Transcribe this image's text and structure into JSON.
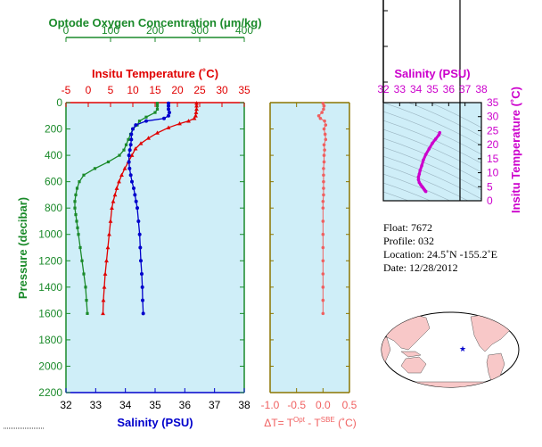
{
  "colors": {
    "oxygen": "#1a8a2a",
    "temperature": "#e00000",
    "salinity": "#0000cc",
    "delta_t": "#f06060",
    "ts_salinity": "#cc00cc",
    "panel_bg": "#cfeef8",
    "pressure_axis": "#1a8a2a",
    "delta_axis": "#8b7500"
  },
  "chart_data": [
    {
      "type": "line",
      "panel": "profiles",
      "ylabel": "Pressure (decibar)",
      "ylim": [
        2200,
        0
      ],
      "yticks": [
        "0",
        "200",
        "400",
        "600",
        "800",
        "1000",
        "1200",
        "1400",
        "1600",
        "1800",
        "2000",
        "2200"
      ],
      "axes": {
        "oxygen": {
          "label": "Optode Oxygen Concentration (μm/kg)",
          "lim": [
            0,
            400
          ],
          "ticks": [
            "0",
            "100",
            "200",
            "300",
            "400"
          ]
        },
        "temperature": {
          "label": "Insitu Temperature (˚C)",
          "lim": [
            -5,
            35
          ],
          "ticks": [
            "-5",
            "0",
            "5",
            "10",
            "15",
            "20",
            "25",
            "30",
            "35"
          ]
        },
        "salinity": {
          "label": "Salinity (PSU)",
          "lim": [
            32,
            38
          ],
          "ticks": [
            "32",
            "33",
            "34",
            "35",
            "36",
            "37",
            "38"
          ]
        }
      },
      "series": [
        {
          "key": "oxygen",
          "marker": "square",
          "points": [
            [
              205,
              5
            ],
            [
              205,
              25
            ],
            [
              205,
              50
            ],
            [
              200,
              75
            ],
            [
              180,
              110
            ],
            [
              165,
              140
            ],
            [
              160,
              170
            ],
            [
              150,
              200
            ],
            [
              145,
              240
            ],
            [
              140,
              280
            ],
            [
              135,
              320
            ],
            [
              130,
              360
            ],
            [
              120,
              400
            ],
            [
              95,
              450
            ],
            [
              65,
              500
            ],
            [
              40,
              550
            ],
            [
              30,
              600
            ],
            [
              25,
              650
            ],
            [
              22,
              700
            ],
            [
              20,
              750
            ],
            [
              20,
              800
            ],
            [
              22,
              850
            ],
            [
              24,
              900
            ],
            [
              26,
              950
            ],
            [
              28,
              1000
            ],
            [
              32,
              1100
            ],
            [
              36,
              1200
            ],
            [
              40,
              1300
            ],
            [
              44,
              1400
            ],
            [
              46,
              1500
            ],
            [
              48,
              1600
            ]
          ]
        },
        {
          "key": "temperature",
          "marker": "triangle",
          "points": [
            [
              24.3,
              5
            ],
            [
              24.3,
              25
            ],
            [
              24.3,
              50
            ],
            [
              24.2,
              75
            ],
            [
              24.1,
              100
            ],
            [
              23.8,
              120
            ],
            [
              22.5,
              140
            ],
            [
              20.5,
              160
            ],
            [
              18,
              190
            ],
            [
              15.5,
              230
            ],
            [
              13.5,
              270
            ],
            [
              11.8,
              310
            ],
            [
              10.6,
              350
            ],
            [
              9.8,
              400
            ],
            [
              9,
              450
            ],
            [
              8.2,
              500
            ],
            [
              7.5,
              550
            ],
            [
              6.9,
              600
            ],
            [
              6.4,
              650
            ],
            [
              6,
              700
            ],
            [
              5.6,
              750
            ],
            [
              5.3,
              800
            ],
            [
              5,
              900
            ],
            [
              4.7,
              1000
            ],
            [
              4.4,
              1100
            ],
            [
              4.1,
              1200
            ],
            [
              3.8,
              1300
            ],
            [
              3.6,
              1400
            ],
            [
              3.4,
              1500
            ],
            [
              3.3,
              1600
            ]
          ]
        },
        {
          "key": "salinity",
          "marker": "circle",
          "points": [
            [
              35.45,
              5
            ],
            [
              35.45,
              25
            ],
            [
              35.45,
              50
            ],
            [
              35.48,
              75
            ],
            [
              35.45,
              100
            ],
            [
              35.3,
              120
            ],
            [
              34.7,
              140
            ],
            [
              34.35,
              170
            ],
            [
              34.25,
              200
            ],
            [
              34.2,
              240
            ],
            [
              34.2,
              280
            ],
            [
              34.18,
              320
            ],
            [
              34.15,
              360
            ],
            [
              34.12,
              400
            ],
            [
              34.12,
              450
            ],
            [
              34.14,
              500
            ],
            [
              34.18,
              550
            ],
            [
              34.22,
              600
            ],
            [
              34.28,
              650
            ],
            [
              34.32,
              700
            ],
            [
              34.36,
              750
            ],
            [
              34.4,
              800
            ],
            [
              34.44,
              900
            ],
            [
              34.48,
              1000
            ],
            [
              34.5,
              1100
            ],
            [
              34.52,
              1200
            ],
            [
              34.55,
              1300
            ],
            [
              34.57,
              1400
            ],
            [
              34.58,
              1500
            ],
            [
              34.6,
              1600
            ]
          ]
        }
      ]
    },
    {
      "type": "scatter",
      "panel": "delta_t",
      "xlabel": "ΔT= T",
      "xlabel_sup1": "Opt",
      "xlabel_mid": " - T",
      "xlabel_sup2": "SBE",
      "xlabel_end": " (˚C)",
      "xlim": [
        -1.0,
        0.5
      ],
      "xticks": [
        "-1.0",
        "-0.5",
        "0.0",
        "0.5"
      ],
      "ylim": [
        2200,
        0
      ],
      "points": [
        [
          0.0,
          5
        ],
        [
          0.02,
          25
        ],
        [
          0.01,
          50
        ],
        [
          -0.02,
          75
        ],
        [
          -0.08,
          100
        ],
        [
          -0.05,
          120
        ],
        [
          0.03,
          140
        ],
        [
          0.05,
          170
        ],
        [
          0.02,
          200
        ],
        [
          0.04,
          240
        ],
        [
          0.05,
          280
        ],
        [
          0.02,
          320
        ],
        [
          0.03,
          360
        ],
        [
          0.02,
          400
        ],
        [
          0.02,
          450
        ],
        [
          0.01,
          500
        ],
        [
          0.01,
          550
        ],
        [
          0.01,
          600
        ],
        [
          0.01,
          650
        ],
        [
          0.01,
          700
        ],
        [
          0.0,
          750
        ],
        [
          0.0,
          800
        ],
        [
          0.0,
          900
        ],
        [
          0.0,
          1000
        ],
        [
          0.0,
          1100
        ],
        [
          0.0,
          1200
        ],
        [
          0.0,
          1300
        ],
        [
          0.0,
          1400
        ],
        [
          0.0,
          1500
        ],
        [
          0.0,
          1600
        ]
      ]
    },
    {
      "type": "line",
      "panel": "ts_diagram",
      "xlabel": "Salinity (PSU)",
      "xlim": [
        32,
        38
      ],
      "xticks": [
        "32",
        "33",
        "34",
        "35",
        "36",
        "37",
        "38"
      ],
      "ylabel": "Insitu Temperature (˚C)",
      "ylim": [
        0,
        35
      ],
      "yticks": [
        "0",
        "5",
        "10",
        "15",
        "20",
        "25",
        "30",
        "35"
      ],
      "series": [
        {
          "key": "ts_salinity",
          "points": [
            [
              35.45,
              24.3
            ],
            [
              35.4,
              23.5
            ],
            [
              35.2,
              22
            ],
            [
              35,
              20.5
            ],
            [
              34.8,
              18.5
            ],
            [
              34.6,
              16.5
            ],
            [
              34.45,
              14.5
            ],
            [
              34.35,
              12.5
            ],
            [
              34.25,
              10.8
            ],
            [
              34.2,
              9.5
            ],
            [
              34.15,
              8.5
            ],
            [
              34.15,
              7.5
            ],
            [
              34.2,
              6.5
            ],
            [
              34.28,
              5.8
            ],
            [
              34.35,
              5.2
            ],
            [
              34.42,
              4.7
            ],
            [
              34.48,
              4.2
            ],
            [
              34.53,
              3.8
            ],
            [
              34.57,
              3.5
            ],
            [
              34.6,
              3.3
            ]
          ]
        }
      ]
    }
  ],
  "float_info": {
    "float": "Float:  7672",
    "profile": "Profile:  032",
    "location": "Location:  24.5˚N  -155.2˚E",
    "date": "Date:  12/28/2012"
  },
  "map": {
    "marker_lat": 24.5,
    "marker_lon": -155.2
  }
}
